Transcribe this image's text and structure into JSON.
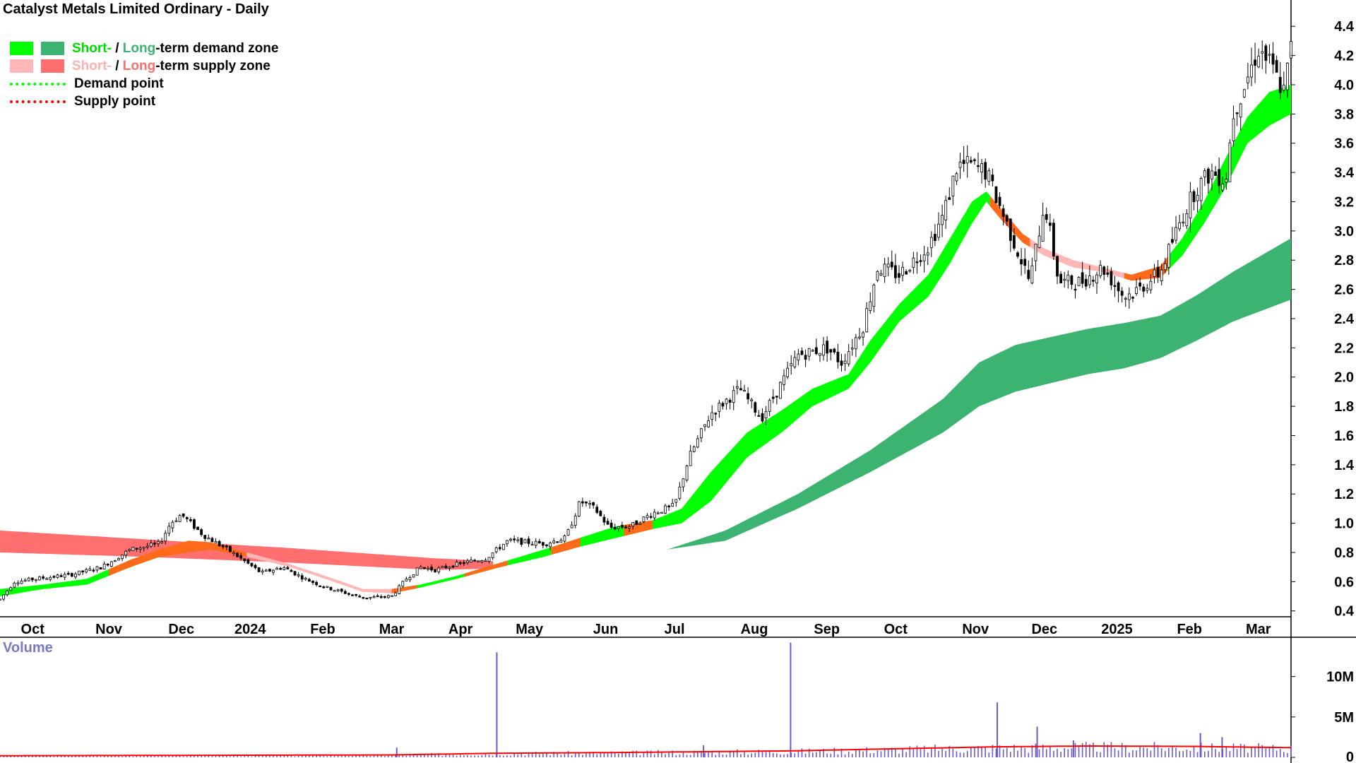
{
  "title": "Catalyst Metals Limited Ordinary - Daily",
  "legend": {
    "demand_short": "Short-",
    "demand_sep": " / ",
    "demand_long": "Long",
    "demand_rest": "-term demand zone",
    "supply_short": "Short-",
    "supply_sep": " / ",
    "supply_long": "Long",
    "supply_rest": "-term supply zone",
    "demand_point": "Demand point",
    "supply_point": "Supply point"
  },
  "volume_label": "Volume",
  "colors": {
    "short_demand": "#00ff00",
    "long_demand": "#3cb371",
    "short_supply": "#ffb6b6",
    "long_supply": "#ff6f6f",
    "orange": "#ff6a1a",
    "demand_point": "#00ff00",
    "supply_point": "#ff0000",
    "volume_bar": "#6a5acd",
    "volume_avg": "#ff0000",
    "volume_label": "#7878c8"
  },
  "chart_data": {
    "type": "candlestick",
    "price_axis": {
      "ticks": [
        0.4,
        0.6,
        0.8,
        1.0,
        1.2,
        1.4,
        1.6,
        1.8,
        2.0,
        2.2,
        2.4,
        2.6,
        2.8,
        3.0,
        3.2,
        3.4,
        3.6,
        3.8,
        4.0,
        4.2,
        4.4
      ],
      "ylim": [
        0.36,
        4.58
      ]
    },
    "x_labels": [
      {
        "label": "Oct",
        "t": 0.45
      },
      {
        "label": "Nov",
        "t": 1.5
      },
      {
        "label": "Dec",
        "t": 2.5
      },
      {
        "label": "2024",
        "t": 3.45
      },
      {
        "label": "Feb",
        "t": 4.45
      },
      {
        "label": "Mar",
        "t": 5.4
      },
      {
        "label": "Apr",
        "t": 6.35
      },
      {
        "label": "May",
        "t": 7.3
      },
      {
        "label": "Jun",
        "t": 8.35
      },
      {
        "label": "Jul",
        "t": 9.3
      },
      {
        "label": "Aug",
        "t": 10.4
      },
      {
        "label": "Sep",
        "t": 11.4
      },
      {
        "label": "Oct",
        "t": 12.35
      },
      {
        "label": "Nov",
        "t": 13.45
      },
      {
        "label": "Dec",
        "t": 14.4
      },
      {
        "label": "2025",
        "t": 15.4
      },
      {
        "label": "Feb",
        "t": 16.4
      },
      {
        "label": "Mar",
        "t": 17.35
      }
    ],
    "t_range": [
      0,
      17.8
    ],
    "price_path": [
      [
        0.0,
        0.48
      ],
      [
        0.2,
        0.6
      ],
      [
        0.5,
        0.62
      ],
      [
        1.0,
        0.65
      ],
      [
        1.4,
        0.7
      ],
      [
        1.8,
        0.82
      ],
      [
        2.2,
        0.86
      ],
      [
        2.35,
        1.0
      ],
      [
        2.5,
        1.06
      ],
      [
        2.8,
        0.92
      ],
      [
        3.2,
        0.8
      ],
      [
        3.6,
        0.66
      ],
      [
        3.9,
        0.7
      ],
      [
        4.2,
        0.62
      ],
      [
        4.5,
        0.56
      ],
      [
        5.0,
        0.49
      ],
      [
        5.4,
        0.5
      ],
      [
        5.6,
        0.62
      ],
      [
        5.8,
        0.7
      ],
      [
        6.0,
        0.68
      ],
      [
        6.3,
        0.72
      ],
      [
        6.7,
        0.76
      ],
      [
        7.0,
        0.88
      ],
      [
        7.5,
        0.86
      ],
      [
        7.8,
        0.9
      ],
      [
        8.0,
        1.15
      ],
      [
        8.2,
        1.1
      ],
      [
        8.4,
        0.97
      ],
      [
        8.7,
        0.98
      ],
      [
        9.0,
        1.07
      ],
      [
        9.3,
        1.12
      ],
      [
        9.5,
        1.45
      ],
      [
        9.8,
        1.75
      ],
      [
        10.2,
        1.92
      ],
      [
        10.5,
        1.72
      ],
      [
        10.8,
        1.98
      ],
      [
        11.0,
        2.15
      ],
      [
        11.4,
        2.2
      ],
      [
        11.6,
        2.1
      ],
      [
        11.9,
        2.35
      ],
      [
        12.1,
        2.75
      ],
      [
        12.4,
        2.7
      ],
      [
        12.8,
        2.9
      ],
      [
        13.0,
        3.1
      ],
      [
        13.2,
        3.45
      ],
      [
        13.4,
        3.45
      ],
      [
        13.6,
        3.4
      ],
      [
        13.8,
        3.15
      ],
      [
        14.0,
        2.9
      ],
      [
        14.2,
        2.65
      ],
      [
        14.4,
        3.2
      ],
      [
        14.6,
        2.65
      ],
      [
        14.9,
        2.65
      ],
      [
        15.2,
        2.75
      ],
      [
        15.5,
        2.55
      ],
      [
        15.7,
        2.6
      ],
      [
        16.0,
        2.72
      ],
      [
        16.3,
        3.1
      ],
      [
        16.5,
        3.3
      ],
      [
        16.7,
        3.4
      ],
      [
        16.9,
        3.35
      ],
      [
        17.0,
        3.8
      ],
      [
        17.2,
        4.05
      ],
      [
        17.35,
        4.25
      ],
      [
        17.5,
        4.15
      ],
      [
        17.7,
        3.95
      ],
      [
        17.8,
        4.25
      ]
    ],
    "long_supply_band": {
      "upper": [
        [
          0.0,
          0.95
        ],
        [
          2.0,
          0.89
        ],
        [
          4.0,
          0.83
        ],
        [
          6.0,
          0.76
        ],
        [
          6.8,
          0.74
        ]
      ],
      "lower": [
        [
          0.0,
          0.8
        ],
        [
          2.0,
          0.77
        ],
        [
          4.0,
          0.73
        ],
        [
          6.0,
          0.68
        ],
        [
          6.8,
          0.69
        ]
      ]
    },
    "long_demand_band": {
      "upper": [
        [
          9.2,
          0.82
        ],
        [
          10.0,
          0.95
        ],
        [
          11.0,
          1.2
        ],
        [
          12.0,
          1.5
        ],
        [
          13.0,
          1.85
        ],
        [
          13.5,
          2.1
        ],
        [
          14.0,
          2.22
        ],
        [
          15.0,
          2.33
        ],
        [
          15.5,
          2.37
        ],
        [
          16.0,
          2.42
        ],
        [
          16.5,
          2.56
        ],
        [
          17.0,
          2.72
        ],
        [
          17.8,
          2.95
        ]
      ],
      "lower": [
        [
          9.2,
          0.82
        ],
        [
          10.0,
          0.88
        ],
        [
          11.0,
          1.1
        ],
        [
          12.0,
          1.35
        ],
        [
          13.0,
          1.62
        ],
        [
          13.5,
          1.8
        ],
        [
          14.0,
          1.9
        ],
        [
          15.0,
          2.02
        ],
        [
          15.5,
          2.06
        ],
        [
          16.0,
          2.13
        ],
        [
          16.5,
          2.25
        ],
        [
          17.0,
          2.38
        ],
        [
          17.8,
          2.53
        ]
      ]
    },
    "short_zone": {
      "upper": [
        [
          0.0,
          0.55
        ],
        [
          0.6,
          0.58
        ],
        [
          1.2,
          0.62
        ],
        [
          1.8,
          0.75
        ],
        [
          2.2,
          0.82
        ],
        [
          2.6,
          0.88
        ],
        [
          2.9,
          0.87
        ],
        [
          3.4,
          0.8
        ],
        [
          4.0,
          0.72
        ],
        [
          4.6,
          0.62
        ],
        [
          5.0,
          0.55
        ],
        [
          5.4,
          0.55
        ],
        [
          5.8,
          0.58
        ],
        [
          6.3,
          0.64
        ],
        [
          6.9,
          0.73
        ],
        [
          7.5,
          0.82
        ],
        [
          8.0,
          0.9
        ],
        [
          8.5,
          0.98
        ],
        [
          9.0,
          1.02
        ],
        [
          9.4,
          1.1
        ],
        [
          9.8,
          1.35
        ],
        [
          10.3,
          1.62
        ],
        [
          10.8,
          1.78
        ],
        [
          11.2,
          1.92
        ],
        [
          11.7,
          2.02
        ],
        [
          12.0,
          2.25
        ],
        [
          12.4,
          2.5
        ],
        [
          12.8,
          2.7
        ],
        [
          13.1,
          2.95
        ],
        [
          13.4,
          3.2
        ],
        [
          13.6,
          3.27
        ],
        [
          13.8,
          3.15
        ],
        [
          14.1,
          2.98
        ],
        [
          14.4,
          2.88
        ],
        [
          14.8,
          2.8
        ],
        [
          15.2,
          2.75
        ],
        [
          15.6,
          2.7
        ],
        [
          16.0,
          2.76
        ],
        [
          16.3,
          2.95
        ],
        [
          16.6,
          3.2
        ],
        [
          16.9,
          3.5
        ],
        [
          17.2,
          3.78
        ],
        [
          17.5,
          3.95
        ],
        [
          17.8,
          4.0
        ]
      ],
      "lower": [
        [
          0.0,
          0.5
        ],
        [
          0.6,
          0.55
        ],
        [
          1.2,
          0.58
        ],
        [
          1.8,
          0.7
        ],
        [
          2.2,
          0.77
        ],
        [
          2.6,
          0.8
        ],
        [
          2.9,
          0.82
        ],
        [
          3.4,
          0.77
        ],
        [
          4.0,
          0.7
        ],
        [
          4.6,
          0.6
        ],
        [
          5.0,
          0.53
        ],
        [
          5.4,
          0.52
        ],
        [
          5.8,
          0.56
        ],
        [
          6.3,
          0.62
        ],
        [
          6.9,
          0.7
        ],
        [
          7.5,
          0.77
        ],
        [
          8.0,
          0.84
        ],
        [
          8.5,
          0.9
        ],
        [
          9.0,
          0.96
        ],
        [
          9.4,
          1.0
        ],
        [
          9.8,
          1.15
        ],
        [
          10.3,
          1.45
        ],
        [
          10.8,
          1.63
        ],
        [
          11.2,
          1.8
        ],
        [
          11.7,
          1.92
        ],
        [
          12.0,
          2.1
        ],
        [
          12.4,
          2.38
        ],
        [
          12.8,
          2.55
        ],
        [
          13.1,
          2.78
        ],
        [
          13.4,
          3.05
        ],
        [
          13.6,
          3.2
        ],
        [
          13.8,
          3.08
        ],
        [
          14.1,
          2.92
        ],
        [
          14.4,
          2.83
        ],
        [
          14.8,
          2.75
        ],
        [
          15.2,
          2.72
        ],
        [
          15.6,
          2.66
        ],
        [
          16.0,
          2.68
        ],
        [
          16.3,
          2.83
        ],
        [
          16.6,
          3.05
        ],
        [
          16.9,
          3.3
        ],
        [
          17.2,
          3.6
        ],
        [
          17.5,
          3.72
        ],
        [
          17.8,
          3.8
        ]
      ]
    },
    "short_zone_states": [
      {
        "from": 0.0,
        "to": 1.45,
        "state": "demand"
      },
      {
        "from": 1.45,
        "to": 3.0,
        "state": "demand"
      },
      {
        "from": 3.0,
        "to": 5.5,
        "state": "supply"
      },
      {
        "from": 5.5,
        "to": 9.2,
        "state": "demand"
      },
      {
        "from": 9.2,
        "to": 13.65,
        "state": "demand"
      },
      {
        "from": 13.65,
        "to": 16.1,
        "state": "supply"
      },
      {
        "from": 16.1,
        "to": 17.8,
        "state": "demand"
      }
    ],
    "volume_axis": {
      "ticks": [
        {
          "label": "0",
          "v": 0
        },
        {
          "label": "5M",
          "v": 5
        },
        {
          "label": "10M",
          "v": 10
        }
      ],
      "ylim": [
        0,
        14.6
      ]
    },
    "volume_spikes": [
      {
        "t": 5.47,
        "v": 1.2
      },
      {
        "t": 6.85,
        "v": 13.0
      },
      {
        "t": 9.7,
        "v": 1.5
      },
      {
        "t": 10.9,
        "v": 14.2
      },
      {
        "t": 13.75,
        "v": 6.8
      },
      {
        "t": 14.3,
        "v": 3.8
      },
      {
        "t": 14.8,
        "v": 2.1
      },
      {
        "t": 16.55,
        "v": 3.0
      },
      {
        "t": 16.85,
        "v": 2.5
      }
    ],
    "volume_avg": [
      [
        0.0,
        0.2
      ],
      [
        5.4,
        0.3
      ],
      [
        6.8,
        0.5
      ],
      [
        8.5,
        0.6
      ],
      [
        10.9,
        0.8
      ],
      [
        12.0,
        1.0
      ],
      [
        13.7,
        1.3
      ],
      [
        15.0,
        1.4
      ],
      [
        16.5,
        1.35
      ],
      [
        17.8,
        1.2
      ]
    ]
  }
}
